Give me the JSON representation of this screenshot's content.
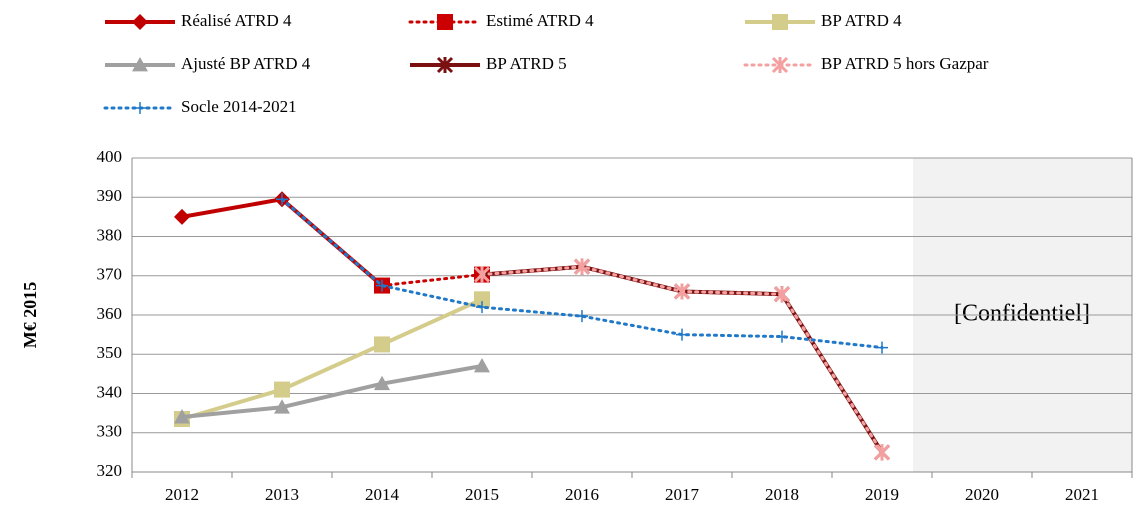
{
  "chart_data": {
    "type": "line",
    "y_label": "M€ 2015",
    "annotation": "[Confidentiel]",
    "categories": [
      "2012",
      "2013",
      "2014",
      "2015",
      "2016",
      "2017",
      "2018",
      "2019",
      "2020",
      "2021"
    ],
    "ylim": [
      320,
      400
    ],
    "yticks": [
      320,
      330,
      340,
      350,
      360,
      370,
      380,
      390,
      400
    ],
    "grid": true,
    "series": [
      {
        "name": "Réalisé ATRD 4",
        "color": "#c00000",
        "dash": "solid",
        "marker": "diamond",
        "values": [
          385,
          389.5,
          367.5,
          null,
          null,
          null,
          null,
          null,
          null,
          null
        ]
      },
      {
        "name": "Estimé ATRD 4",
        "color": "#cc0000",
        "dash": "dotted",
        "marker": "square",
        "values": [
          null,
          null,
          367.5,
          370.3,
          null,
          null,
          null,
          null,
          null,
          null
        ]
      },
      {
        "name": "BP ATRD 4",
        "color": "#d4cc8a",
        "dash": "solid",
        "marker": "square",
        "values": [
          333.5,
          341,
          352.5,
          364,
          null,
          null,
          null,
          null,
          null,
          null
        ]
      },
      {
        "name": "Ajusté BP ATRD 4",
        "color": "#a0a0a0",
        "dash": "solid",
        "marker": "triangle",
        "values": [
          334,
          336.5,
          342.5,
          347,
          null,
          null,
          null,
          null,
          null,
          null
        ]
      },
      {
        "name": "BP ATRD 5",
        "color": "#7b1010",
        "dash": "solid",
        "marker": "star",
        "values": [
          null,
          null,
          null,
          370.3,
          372.3,
          366,
          365.3,
          325,
          null,
          null
        ]
      },
      {
        "name": "BP ATRD 5 hors Gazpar",
        "color": "#f4a0a0",
        "dash": "dotted",
        "marker": "star",
        "values": [
          null,
          null,
          null,
          370.3,
          372.3,
          366,
          365.3,
          325,
          null,
          null
        ]
      },
      {
        "name": "Socle 2014-2021",
        "color": "#1f78c8",
        "dash": "dotted",
        "marker": "plus",
        "values": [
          null,
          389.5,
          367.5,
          362,
          359.7,
          355,
          354.5,
          351.7,
          null,
          null
        ]
      }
    ]
  }
}
